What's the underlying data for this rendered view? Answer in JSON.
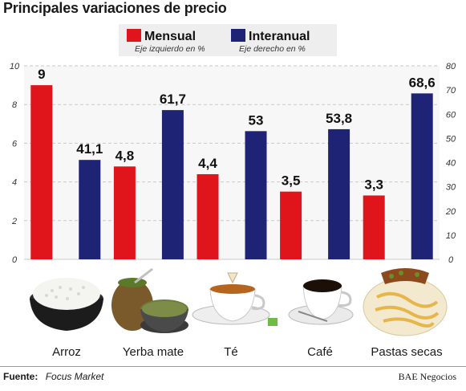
{
  "title": "Principales variaciones de precio",
  "legend": {
    "items": [
      {
        "name": "Mensual",
        "axis_note": "Eje izquierdo en %",
        "color": "#e0151b"
      },
      {
        "name": "Interanual",
        "axis_note": "Eje derecho en %",
        "color": "#1f2375"
      }
    ]
  },
  "chart_data": {
    "type": "bar",
    "categories": [
      "Arroz",
      "Yerba mate",
      "Té",
      "Café",
      "Pastas secas"
    ],
    "series": [
      {
        "name": "Mensual",
        "axis": "left",
        "values": [
          9,
          4.8,
          4.4,
          3.5,
          3.3
        ],
        "labels": [
          "9",
          "4,8",
          "4,4",
          "3,5",
          "3,3"
        ],
        "color": "#e0151b"
      },
      {
        "name": "Interanual",
        "axis": "right",
        "values": [
          41.1,
          61.7,
          53,
          53.8,
          68.6
        ],
        "labels": [
          "41,1",
          "61,7",
          "53",
          "53,8",
          "68,6"
        ],
        "color": "#1f2375"
      }
    ],
    "y_left": {
      "ylim": [
        0,
        10
      ],
      "ticks": [
        "0",
        "2",
        "4",
        "6",
        "8",
        "10"
      ]
    },
    "y_right": {
      "ylim": [
        0,
        80
      ],
      "ticks": [
        "0",
        "10",
        "20",
        "30",
        "40",
        "50",
        "60",
        "70",
        "80"
      ]
    },
    "grid": true
  },
  "footer": {
    "source_label": "Fuente:",
    "source_name": "Focus Market",
    "brand": "BAE Negocios"
  }
}
